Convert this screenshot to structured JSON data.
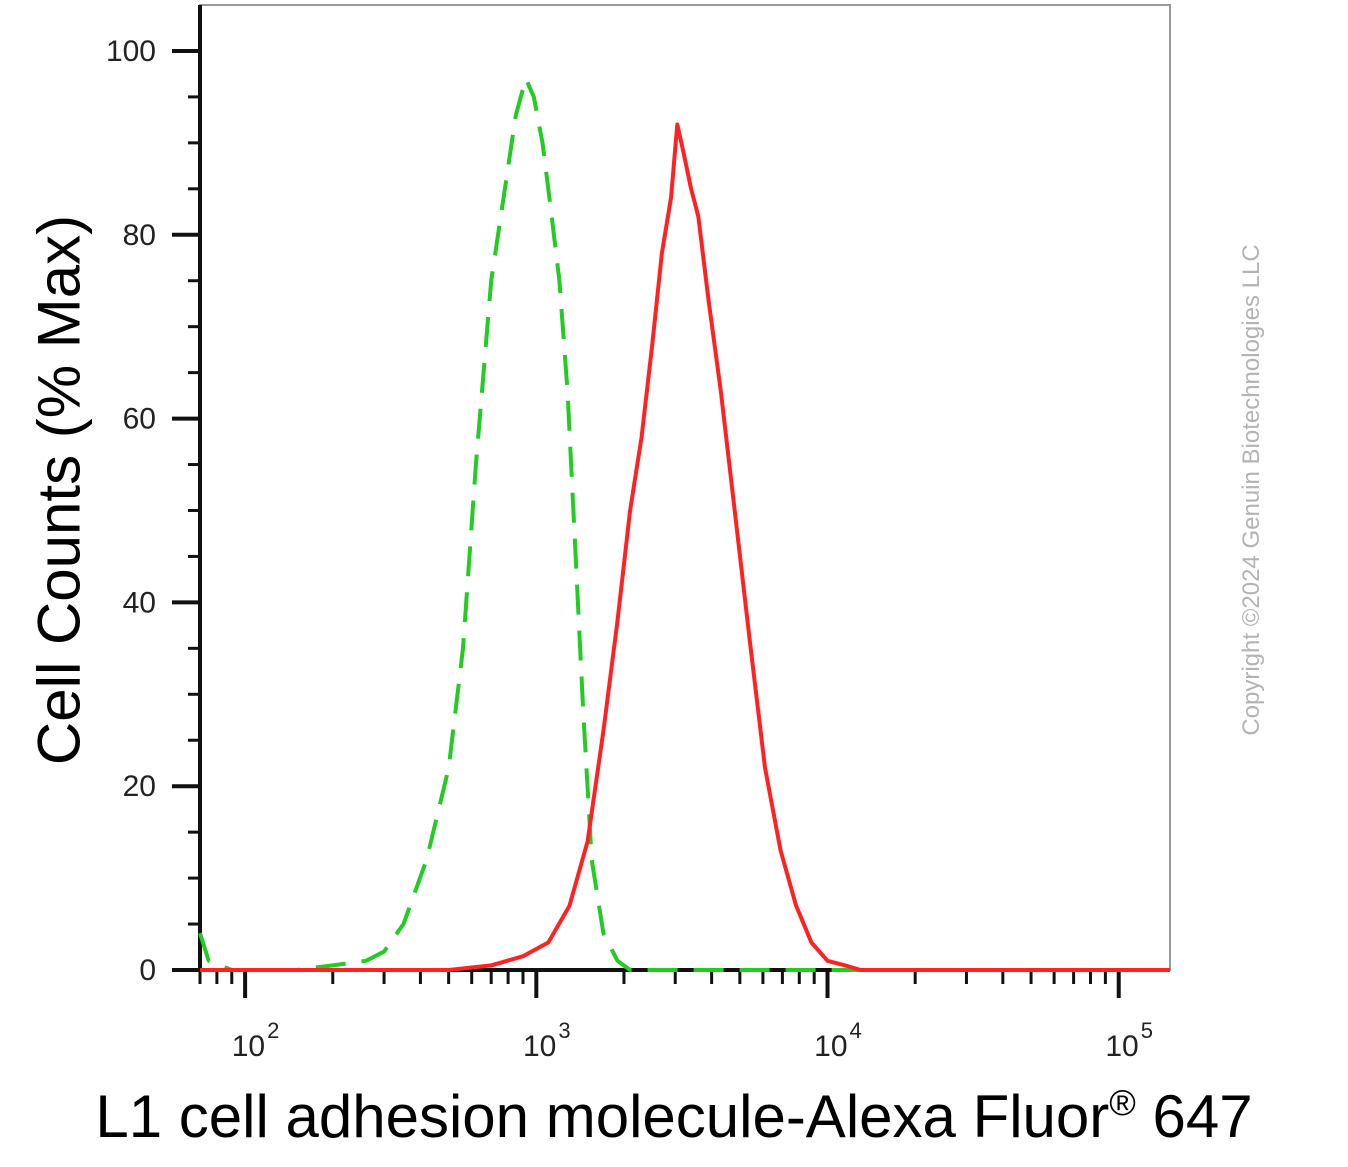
{
  "chart_data": {
    "type": "line",
    "xlabel_main": "L1 cell adhesion molecule-Alexa Fluor",
    "xlabel_reg": "®",
    "xlabel_tail": "647",
    "ylabel": "Cell Counts (% Max)",
    "x_scale": "log",
    "xlim": [
      70,
      150000
    ],
    "ylim": [
      0,
      105
    ],
    "y_ticks": [
      0,
      20,
      40,
      60,
      80,
      100
    ],
    "y_tick_labels": [
      "0",
      "20",
      "40",
      "60",
      "80",
      "100"
    ],
    "x_ticks": [
      100,
      1000,
      10000,
      100000
    ],
    "x_tick_base": "10",
    "x_tick_exponents": [
      "2",
      "3",
      "4",
      "5"
    ],
    "grid": false,
    "series": [
      {
        "style": "dashed",
        "color": "#22cc22",
        "x": [
          70,
          75,
          90,
          150,
          200,
          260,
          300,
          350,
          420,
          500,
          560,
          620,
          700,
          780,
          850,
          920,
          980,
          1050,
          1120,
          1200,
          1280,
          1350,
          1450,
          1550,
          1700,
          1900,
          2100,
          2400,
          3000,
          10000,
          150000
        ],
        "y": [
          4,
          1,
          0,
          0,
          0.5,
          1,
          2,
          5,
          12,
          22,
          35,
          55,
          75,
          85,
          93,
          97,
          95,
          90,
          83,
          75,
          63,
          48,
          28,
          12,
          4,
          1,
          0,
          0,
          0,
          0,
          0
        ]
      },
      {
        "style": "solid",
        "color": "#ff2222",
        "x": [
          70,
          300,
          500,
          700,
          900,
          1100,
          1300,
          1500,
          1700,
          1900,
          2100,
          2300,
          2500,
          2700,
          2900,
          3050,
          3200,
          3400,
          3600,
          3900,
          4300,
          4800,
          5400,
          6100,
          6900,
          7800,
          8800,
          10000,
          11500,
          13000,
          15000,
          150000
        ],
        "y": [
          0,
          0,
          0,
          0.5,
          1.5,
          3,
          7,
          14,
          26,
          38,
          50,
          58,
          68,
          78,
          84,
          92,
          89,
          85,
          82,
          73,
          63,
          50,
          36,
          22,
          13,
          7,
          3,
          1,
          0.5,
          0,
          0,
          0
        ]
      }
    ]
  },
  "copyright": "Copyright ©2024 Genuin Biotechnologies LLC"
}
